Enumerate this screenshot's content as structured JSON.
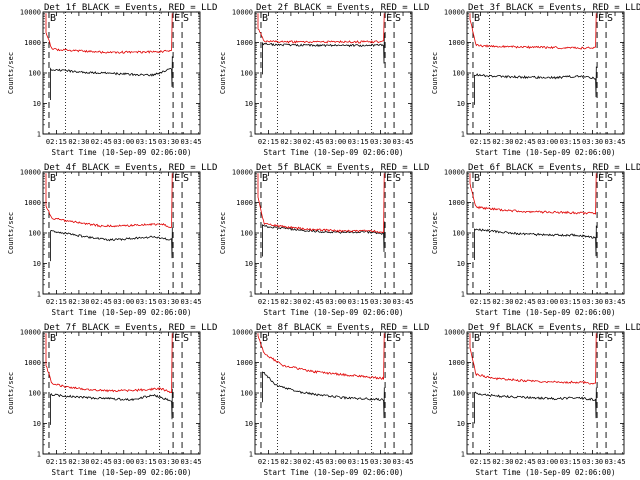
{
  "colors": {
    "events": "#000000",
    "lld": "#e00000",
    "axes": "#000000",
    "background": "#ffffff"
  },
  "chart_data": [
    {
      "type": "line",
      "title": "Det 1f BLACK = Events, RED = LLD",
      "xlabel": "Start Time (10-Sep-09 02:06:00)",
      "ylabel": "Counts/sec",
      "yscale": "log",
      "ylim": [
        1,
        10000
      ],
      "xlim": [
        "02:06",
        "03:51"
      ],
      "x_ticks": [
        "02:15",
        "02:30",
        "02:45",
        "03:00",
        "03:15",
        "03:30",
        "03:45"
      ],
      "y_ticks": [
        "1",
        "10",
        "100",
        "1000",
        "10000"
      ],
      "markers": [
        {
          "label": "B",
          "time": "02:10"
        },
        {
          "label": "E",
          "time": "03:33"
        },
        {
          "label": "S",
          "time": "03:39"
        }
      ],
      "dotted_lines": [
        "02:21",
        "03:24"
      ],
      "series": [
        {
          "name": "Events",
          "color": "black",
          "x": [
            "02:11",
            "02:20",
            "02:35",
            "02:50",
            "03:05",
            "03:20",
            "03:32"
          ],
          "values": [
            130,
            120,
            105,
            98,
            90,
            85,
            140
          ]
        },
        {
          "name": "LLD",
          "color": "red",
          "x": [
            "02:08",
            "02:12",
            "02:25",
            "02:45",
            "03:05",
            "03:25",
            "03:32"
          ],
          "values": [
            2000,
            600,
            550,
            480,
            480,
            500,
            550
          ]
        }
      ]
    },
    {
      "type": "line",
      "title": "Det 2f BLACK = Events, RED = LLD",
      "xlabel": "Start Time (10-Sep-09 02:06:00)",
      "ylabel": "Counts/sec",
      "yscale": "log",
      "ylim": [
        1,
        10000
      ],
      "xlim": [
        "02:06",
        "03:51"
      ],
      "x_ticks": [
        "02:15",
        "02:30",
        "02:45",
        "03:00",
        "03:15",
        "03:30",
        "03:45"
      ],
      "y_ticks": [
        "1",
        "10",
        "100",
        "1000",
        "10000"
      ],
      "markers": [
        {
          "label": "B",
          "time": "02:10"
        },
        {
          "label": "E",
          "time": "03:33"
        },
        {
          "label": "S",
          "time": "03:39"
        }
      ],
      "dotted_lines": [
        "02:21",
        "03:24"
      ],
      "series": [
        {
          "name": "Events",
          "color": "black",
          "x": [
            "02:11",
            "02:20",
            "02:35",
            "02:50",
            "03:05",
            "03:20",
            "03:32"
          ],
          "values": [
            900,
            850,
            820,
            800,
            800,
            800,
            820
          ]
        },
        {
          "name": "LLD",
          "color": "red",
          "x": [
            "02:08",
            "02:12",
            "02:25",
            "02:45",
            "03:05",
            "03:25",
            "03:32"
          ],
          "values": [
            3000,
            1100,
            1050,
            1050,
            1050,
            1050,
            1100
          ]
        }
      ]
    },
    {
      "type": "line",
      "title": "Det 3f BLACK = Events, RED = LLD",
      "xlabel": "Start Time (10-Sep-09 02:06:00)",
      "ylabel": "Counts/sec",
      "yscale": "log",
      "ylim": [
        1,
        10000
      ],
      "xlim": [
        "02:06",
        "03:51"
      ],
      "x_ticks": [
        "02:15",
        "02:30",
        "02:45",
        "03:00",
        "03:15",
        "03:30",
        "03:45"
      ],
      "y_ticks": [
        "1",
        "10",
        "100",
        "1000",
        "10000"
      ],
      "markers": [
        {
          "label": "B",
          "time": "02:10"
        },
        {
          "label": "E",
          "time": "03:33"
        },
        {
          "label": "S",
          "time": "03:39"
        }
      ],
      "dotted_lines": [
        "02:21",
        "03:24"
      ],
      "series": [
        {
          "name": "Events",
          "color": "black",
          "x": [
            "02:11",
            "02:20",
            "02:35",
            "02:50",
            "03:05",
            "03:20",
            "03:32"
          ],
          "values": [
            90,
            80,
            75,
            72,
            70,
            80,
            65
          ]
        },
        {
          "name": "LLD",
          "color": "red",
          "x": [
            "02:08",
            "02:12",
            "02:25",
            "02:45",
            "03:05",
            "03:25",
            "03:32"
          ],
          "values": [
            6000,
            800,
            750,
            700,
            680,
            650,
            700
          ]
        }
      ]
    },
    {
      "type": "line",
      "title": "Det 4f BLACK = Events, RED = LLD",
      "xlabel": "Start Time (10-Sep-09 02:06:00)",
      "ylabel": "Counts/sec",
      "yscale": "log",
      "ylim": [
        1,
        10000
      ],
      "xlim": [
        "02:06",
        "03:51"
      ],
      "x_ticks": [
        "02:15",
        "02:30",
        "02:45",
        "03:00",
        "03:15",
        "03:30",
        "03:45"
      ],
      "y_ticks": [
        "1",
        "10",
        "100",
        "1000",
        "10000"
      ],
      "markers": [
        {
          "label": "B",
          "time": "02:10"
        },
        {
          "label": "E",
          "time": "03:33"
        },
        {
          "label": "S",
          "time": "03:39"
        }
      ],
      "dotted_lines": [
        "02:21",
        "03:24"
      ],
      "series": [
        {
          "name": "Events",
          "color": "black",
          "x": [
            "02:11",
            "02:20",
            "02:35",
            "02:50",
            "03:05",
            "03:20",
            "03:32"
          ],
          "values": [
            120,
            100,
            75,
            60,
            65,
            75,
            60
          ]
        },
        {
          "name": "LLD",
          "color": "red",
          "x": [
            "02:08",
            "02:12",
            "02:25",
            "02:45",
            "03:05",
            "03:25",
            "03:32"
          ],
          "values": [
            800,
            300,
            240,
            170,
            175,
            200,
            150
          ]
        }
      ]
    },
    {
      "type": "line",
      "title": "Det 5f BLACK = Events, RED = LLD",
      "xlabel": "Start Time (10-Sep-09 02:06:00)",
      "ylabel": "Counts/sec",
      "yscale": "log",
      "ylim": [
        1,
        10000
      ],
      "xlim": [
        "02:06",
        "03:51"
      ],
      "x_ticks": [
        "02:15",
        "02:30",
        "02:45",
        "03:00",
        "03:15",
        "03:30",
        "03:45"
      ],
      "y_ticks": [
        "1",
        "10",
        "100",
        "1000",
        "10000"
      ],
      "markers": [
        {
          "label": "B",
          "time": "02:10"
        },
        {
          "label": "E",
          "time": "03:33"
        },
        {
          "label": "S",
          "time": "03:39"
        }
      ],
      "dotted_lines": [
        "02:21",
        "03:24"
      ],
      "series": [
        {
          "name": "Events",
          "color": "black",
          "x": [
            "02:11",
            "02:20",
            "02:35",
            "02:50",
            "03:05",
            "03:20",
            "03:32"
          ],
          "values": [
            170,
            150,
            130,
            110,
            105,
            110,
            95
          ]
        },
        {
          "name": "LLD",
          "color": "red",
          "x": [
            "02:08",
            "02:12",
            "02:25",
            "02:45",
            "03:05",
            "03:25",
            "03:32"
          ],
          "values": [
            1500,
            200,
            160,
            130,
            115,
            120,
            105
          ]
        }
      ]
    },
    {
      "type": "line",
      "title": "Det 6f BLACK = Events, RED = LLD",
      "xlabel": "Start Time (10-Sep-09 02:06:00)",
      "ylabel": "Counts/sec",
      "yscale": "log",
      "ylim": [
        1,
        10000
      ],
      "xlim": [
        "02:06",
        "03:51"
      ],
      "x_ticks": [
        "02:15",
        "02:30",
        "02:45",
        "03:00",
        "03:15",
        "03:30",
        "03:45"
      ],
      "y_ticks": [
        "1",
        "10",
        "100",
        "1000",
        "10000"
      ],
      "markers": [
        {
          "label": "B",
          "time": "02:10"
        },
        {
          "label": "E",
          "time": "03:33"
        },
        {
          "label": "S",
          "time": "03:39"
        }
      ],
      "dotted_lines": [
        "02:21",
        "03:24"
      ],
      "series": [
        {
          "name": "Events",
          "color": "black",
          "x": [
            "02:11",
            "02:20",
            "02:35",
            "02:50",
            "03:05",
            "03:20",
            "03:32"
          ],
          "values": [
            130,
            120,
            100,
            90,
            85,
            85,
            70
          ]
        },
        {
          "name": "LLD",
          "color": "red",
          "x": [
            "02:08",
            "02:12",
            "02:25",
            "02:45",
            "03:05",
            "03:25",
            "03:32"
          ],
          "values": [
            4000,
            700,
            600,
            500,
            480,
            450,
            450
          ]
        }
      ]
    },
    {
      "type": "line",
      "title": "Det 7f BLACK = Events, RED = LLD",
      "xlabel": "Start Time (10-Sep-09 02:06:00)",
      "ylabel": "Counts/sec",
      "yscale": "log",
      "ylim": [
        1,
        10000
      ],
      "xlim": [
        "02:06",
        "03:51"
      ],
      "x_ticks": [
        "02:15",
        "02:30",
        "02:45",
        "03:00",
        "03:15",
        "03:30",
        "03:45"
      ],
      "y_ticks": [
        "1",
        "10",
        "100",
        "1000",
        "10000"
      ],
      "markers": [
        {
          "label": "B",
          "time": "02:10"
        },
        {
          "label": "E",
          "time": "03:33"
        },
        {
          "label": "S",
          "time": "03:39"
        }
      ],
      "dotted_lines": [
        "02:21",
        "03:24"
      ],
      "series": [
        {
          "name": "Events",
          "color": "black",
          "x": [
            "02:11",
            "02:20",
            "02:35",
            "02:50",
            "03:05",
            "03:20",
            "03:32"
          ],
          "values": [
            90,
            80,
            70,
            65,
            60,
            85,
            55
          ]
        },
        {
          "name": "LLD",
          "color": "red",
          "x": [
            "02:08",
            "02:12",
            "02:25",
            "02:45",
            "03:05",
            "03:25",
            "03:32"
          ],
          "values": [
            800,
            200,
            150,
            120,
            120,
            140,
            100
          ]
        }
      ]
    },
    {
      "type": "line",
      "title": "Det 8f BLACK = Events, RED = LLD",
      "xlabel": "Start Time (10-Sep-09 02:06:00)",
      "ylabel": "Counts/sec",
      "yscale": "log",
      "ylim": [
        1,
        10000
      ],
      "xlim": [
        "02:06",
        "03:51"
      ],
      "x_ticks": [
        "02:15",
        "02:30",
        "02:45",
        "03:00",
        "03:15",
        "03:30",
        "03:45"
      ],
      "y_ticks": [
        "1",
        "10",
        "100",
        "1000",
        "10000"
      ],
      "markers": [
        {
          "label": "B",
          "time": "02:10"
        },
        {
          "label": "E",
          "time": "03:33"
        },
        {
          "label": "S",
          "time": "03:39"
        }
      ],
      "dotted_lines": [
        "02:21",
        "03:24"
      ],
      "series": [
        {
          "name": "Events",
          "color": "black",
          "x": [
            "02:11",
            "02:20",
            "02:35",
            "02:50",
            "03:05",
            "03:20",
            "03:32"
          ],
          "values": [
            500,
            180,
            110,
            85,
            70,
            65,
            60
          ]
        },
        {
          "name": "LLD",
          "color": "red",
          "x": [
            "02:08",
            "02:12",
            "02:25",
            "02:45",
            "03:05",
            "03:25",
            "03:32"
          ],
          "values": [
            8000,
            2000,
            800,
            500,
            400,
            320,
            300
          ]
        }
      ]
    },
    {
      "type": "line",
      "title": "Det 9f BLACK = Events, RED = LLD",
      "xlabel": "Start Time (10-Sep-09 02:06:00)",
      "ylabel": "Counts/sec",
      "yscale": "log",
      "ylim": [
        1,
        10000
      ],
      "xlim": [
        "02:06",
        "03:51"
      ],
      "x_ticks": [
        "02:15",
        "02:30",
        "02:45",
        "03:00",
        "03:15",
        "03:30",
        "03:45"
      ],
      "y_ticks": [
        "1",
        "10",
        "100",
        "1000",
        "10000"
      ],
      "markers": [
        {
          "label": "B",
          "time": "02:10"
        },
        {
          "label": "E",
          "time": "03:33"
        },
        {
          "label": "S",
          "time": "03:39"
        }
      ],
      "dotted_lines": [
        "02:21",
        "03:24"
      ],
      "series": [
        {
          "name": "Events",
          "color": "black",
          "x": [
            "02:11",
            "02:20",
            "02:35",
            "02:50",
            "03:05",
            "03:20",
            "03:32"
          ],
          "values": [
            100,
            85,
            75,
            70,
            65,
            70,
            60
          ]
        },
        {
          "name": "LLD",
          "color": "red",
          "x": [
            "02:08",
            "02:12",
            "02:25",
            "02:45",
            "03:05",
            "03:25",
            "03:32"
          ],
          "values": [
            3000,
            400,
            300,
            250,
            230,
            220,
            200
          ]
        }
      ]
    }
  ]
}
